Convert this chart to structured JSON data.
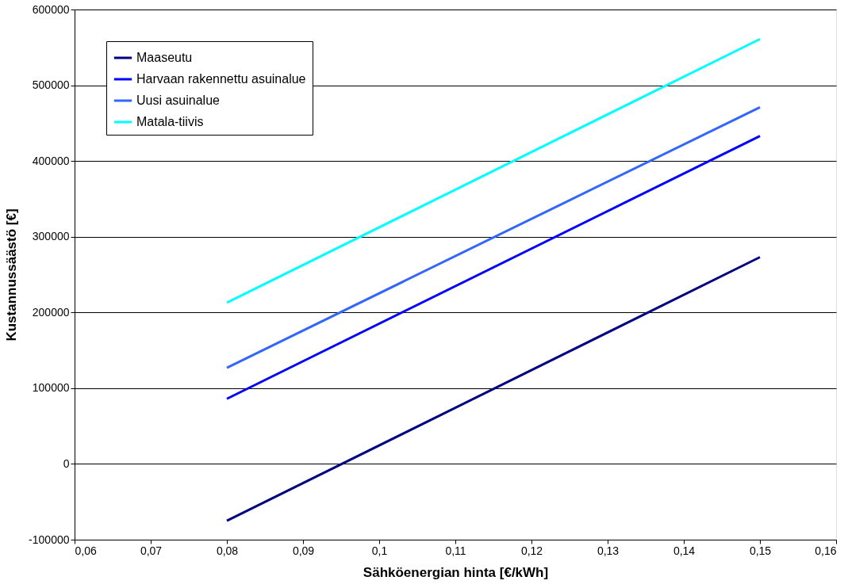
{
  "chart_data": {
    "type": "line",
    "xlabel": "Sähköenergian hinta [€/kWh]",
    "ylabel": "Kustannussäästö [€]",
    "x": [
      0.08,
      0.15
    ],
    "series": [
      {
        "name": "Maaseutu",
        "color": "#000080",
        "values": [
          -75000,
          273000
        ]
      },
      {
        "name": "Harvaan rakennettu asuinalue",
        "color": "#0000ff",
        "values": [
          86000,
          433000
        ]
      },
      {
        "name": "Uusi asuinalue",
        "color": "#3366ff",
        "values": [
          127000,
          471000
        ]
      },
      {
        "name": "Matala-tiivis",
        "color": "#00ffff",
        "values": [
          213000,
          561000
        ]
      }
    ],
    "xlim": [
      0.06,
      0.16
    ],
    "xticks": [
      {
        "value": 0.06,
        "label": "0,06"
      },
      {
        "value": 0.07,
        "label": "0,07"
      },
      {
        "value": 0.08,
        "label": "0,08"
      },
      {
        "value": 0.09,
        "label": "0,09"
      },
      {
        "value": 0.1,
        "label": "0,1"
      },
      {
        "value": 0.11,
        "label": "0,11"
      },
      {
        "value": 0.12,
        "label": "0,12"
      },
      {
        "value": 0.13,
        "label": "0,13"
      },
      {
        "value": 0.14,
        "label": "0,14"
      },
      {
        "value": 0.15,
        "label": "0,15"
      },
      {
        "value": 0.16,
        "label": "0,16"
      }
    ],
    "ylim": [
      -100000,
      600000
    ],
    "yticks": [
      -100000,
      0,
      100000,
      200000,
      300000,
      400000,
      500000,
      600000
    ],
    "grid": "y",
    "legend": "top left",
    "marker": "none",
    "line_style": "solid"
  }
}
